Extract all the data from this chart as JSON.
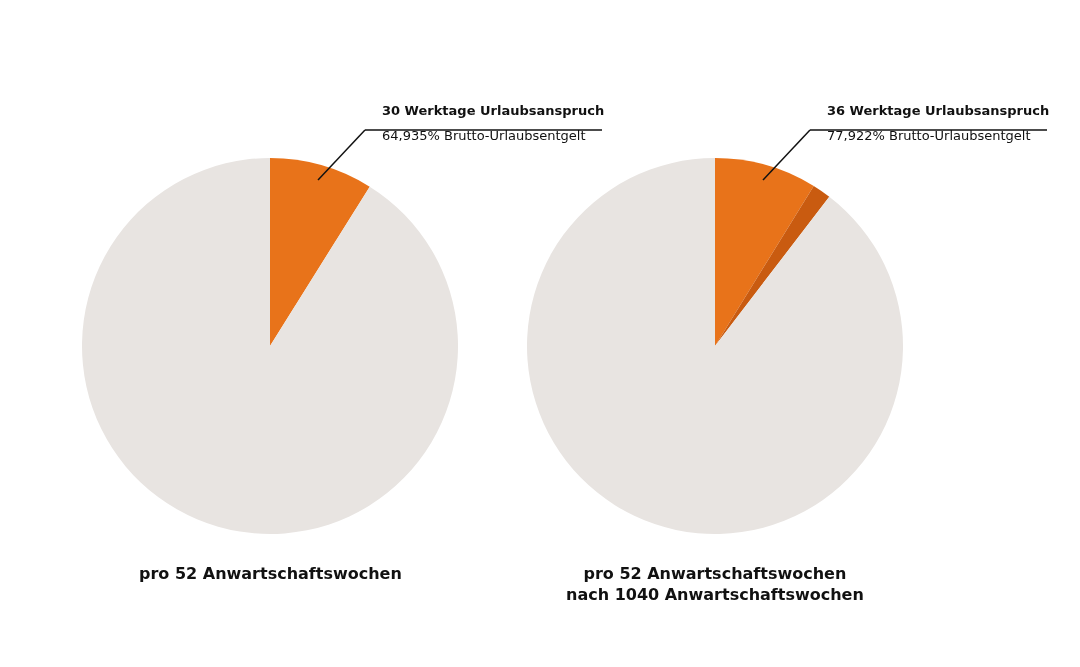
{
  "chart_data": [
    {
      "type": "pie",
      "title": "pro 52 Anwartschaftswochen",
      "categories": [
        null,
        null
      ],
      "values": [
        8.9,
        91.1
      ],
      "colors": [
        "#e8731a",
        "#e8e4e1"
      ],
      "annotations": [
        "30 Werktage Urlaubsanspruch",
        "64,935% Brutto-Urlaubsentgelt"
      ],
      "legend": false
    },
    {
      "type": "pie",
      "title": "pro 52 Anwartschaftswochen\nnach 1040 Anwartschaftswochen",
      "categories": [
        null,
        null,
        null
      ],
      "values": [
        8.8,
        1.6,
        89.6
      ],
      "colors": [
        "#e8731a",
        "#c95b10",
        "#e8e4e1"
      ],
      "annotations": [
        "36 Werktage Urlaubsanspruch",
        "77,922% Brutto-Urlaubsentgelt"
      ],
      "legend": false
    }
  ]
}
